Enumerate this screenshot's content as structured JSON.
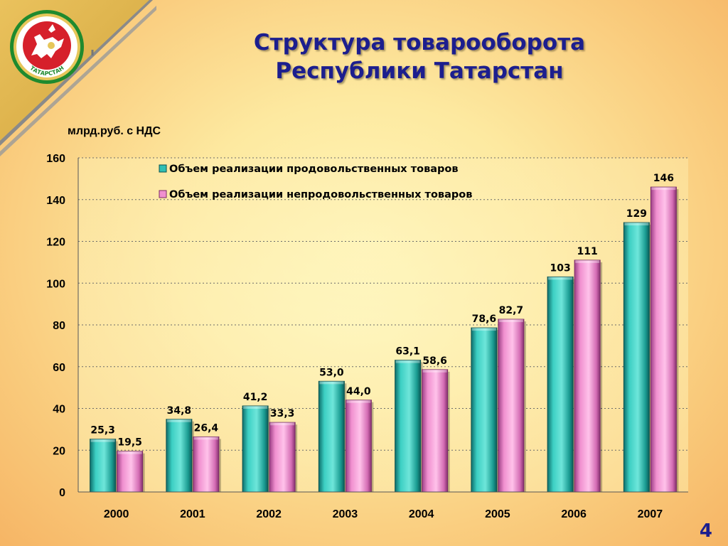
{
  "title_line1": "Структура товарооборота",
  "title_line2": "Республики Татарстан",
  "unit_label": "млрд.руб. с НДС",
  "emblem_text": "ТАТАРСТАН",
  "page_number": "4",
  "colors": {
    "title": "#1c1e8e",
    "series_food": "#2fbfb4",
    "series_nonfood": "#f08fcf",
    "emblem_green": "#1f8a2e",
    "emblem_red": "#d6202b"
  },
  "chart_data": {
    "type": "bar",
    "categories": [
      "2000",
      "2001",
      "2002",
      "2003",
      "2004",
      "2005",
      "2006",
      "2007"
    ],
    "series": [
      {
        "name": "Объем реализации продовольственных товаров",
        "values": [
          25.3,
          34.8,
          41.2,
          53.0,
          63.1,
          78.6,
          103,
          129
        ],
        "labels": [
          "25,3",
          "34,8",
          "41,2",
          "53,0",
          "63,1",
          "78,6",
          "103",
          "129"
        ]
      },
      {
        "name": "Объем реализации непродовольственных товаров",
        "values": [
          19.5,
          26.4,
          33.3,
          44.0,
          58.6,
          82.7,
          111,
          146
        ],
        "labels": [
          "19,5",
          "26,4",
          "33,3",
          "44,0",
          "58,6",
          "82,7",
          "111",
          "146"
        ]
      }
    ],
    "ylabel": "млрд.руб. с НДС",
    "ylim": [
      0,
      160
    ],
    "yticks": [
      0,
      20,
      40,
      60,
      80,
      100,
      120,
      140,
      160
    ],
    "grid": true,
    "legend_position": "top-left"
  }
}
